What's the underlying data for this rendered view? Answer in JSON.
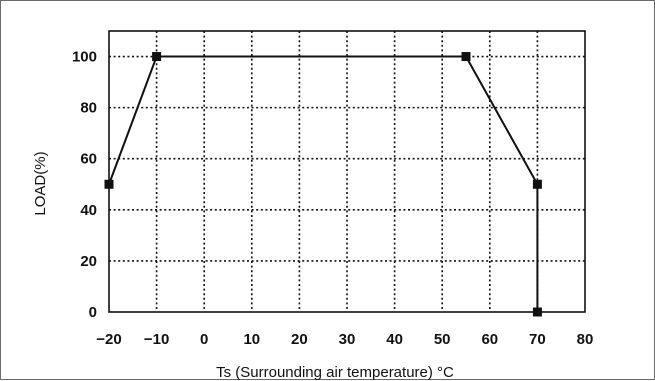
{
  "chart_data": {
    "type": "line",
    "xlabel": "Ts (Surrounding air temperature) °C",
    "ylabel": "LOAD(%)",
    "xlim": [
      -20,
      80
    ],
    "ylim": [
      0,
      110
    ],
    "x_ticks": [
      -20,
      -10,
      0,
      10,
      20,
      30,
      40,
      50,
      60,
      70,
      80
    ],
    "y_ticks": [
      0,
      20,
      40,
      60,
      80,
      100
    ],
    "grid": true,
    "legend": "none",
    "series": [
      {
        "points": [
          {
            "x": -20,
            "y": 50
          },
          {
            "x": -10,
            "y": 100
          },
          {
            "x": 55,
            "y": 100
          },
          {
            "x": 70,
            "y": 50
          },
          {
            "x": 70,
            "y": 0
          }
        ]
      }
    ]
  }
}
